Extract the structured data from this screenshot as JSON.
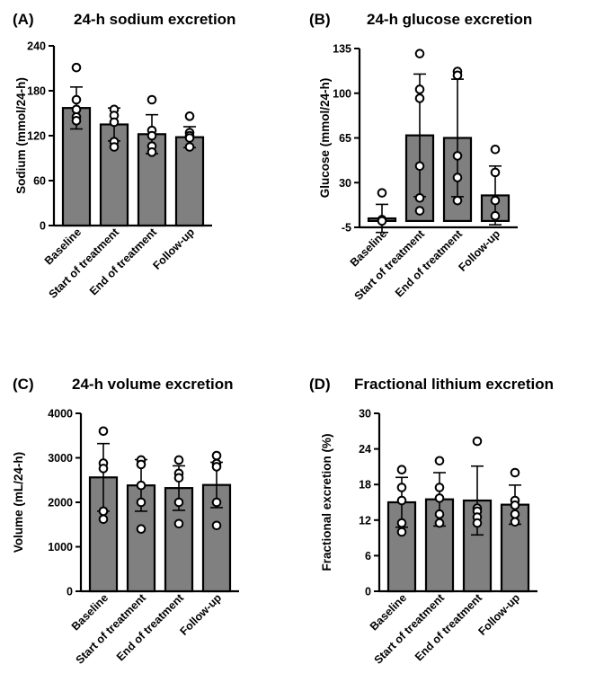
{
  "chart_data": [
    {
      "panel": "(A)",
      "type": "bar",
      "title": "24-h  sodium excretion",
      "ylabel": "Sodium (mmol/24-h)",
      "ylim": [
        0,
        240
      ],
      "yticks": [
        0,
        60,
        120,
        180,
        240
      ],
      "categories": [
        "Baseline",
        "Start of treatment",
        "End of treatment",
        "Follow-up"
      ],
      "values": [
        157,
        135,
        122,
        118
      ],
      "error": [
        28,
        22,
        26,
        14
      ],
      "points": [
        [
          211,
          168,
          155,
          145,
          140
        ],
        [
          155,
          147,
          138,
          112,
          105
        ],
        [
          168,
          127,
          120,
          106,
          98
        ],
        [
          146,
          124,
          120,
          117,
          105
        ]
      ],
      "bar_color": "#808080"
    },
    {
      "panel": "(B)",
      "type": "bar",
      "title": "24-h glucose excretion",
      "ylabel": "Glucose (mmol/24-h)",
      "ylim": [
        -5,
        135
      ],
      "yticks": [
        -5,
        30,
        65,
        100,
        135
      ],
      "categories": [
        "Baseline",
        "Start of treatment",
        "End of treatment",
        "Follow-up"
      ],
      "values": [
        2,
        67,
        65,
        20
      ],
      "error": [
        11,
        48,
        46,
        23
      ],
      "points": [
        [
          22,
          1,
          0
        ],
        [
          131,
          103,
          96,
          43,
          18,
          8
        ],
        [
          117,
          114,
          51,
          34,
          16
        ],
        [
          56,
          38,
          16,
          4
        ]
      ],
      "bar_color": "#808080"
    },
    {
      "panel": "(C)",
      "type": "bar",
      "title": "24-h  volume excretion",
      "ylabel": "Volume (mL/24-h)",
      "ylim": [
        0,
        4000
      ],
      "yticks": [
        0,
        1000,
        2000,
        3000,
        4000
      ],
      "categories": [
        "Baseline",
        "Start of treatment",
        "End of treatment",
        "Follow-up"
      ],
      "values": [
        2560,
        2380,
        2320,
        2390
      ],
      "error": [
        760,
        580,
        500,
        510
      ],
      "points": [
        [
          3600,
          2880,
          2760,
          1800,
          1620
        ],
        [
          2950,
          2850,
          2380,
          2000,
          1400
        ],
        [
          2950,
          2650,
          2550,
          2000,
          1520
        ],
        [
          3050,
          2870,
          2800,
          2000,
          1480
        ]
      ],
      "bar_color": "#808080"
    },
    {
      "panel": "(D)",
      "type": "bar",
      "title": "Fractional lithium excretion",
      "ylabel": "Fractional excretion (%)",
      "ylim": [
        0,
        30
      ],
      "yticks": [
        0,
        6,
        12,
        18,
        24,
        30
      ],
      "categories": [
        "Baseline",
        "Start of treatment",
        "End of treatment",
        "Follow-up"
      ],
      "values": [
        15,
        15.5,
        15.3,
        14.6
      ],
      "error": [
        4.2,
        4.5,
        5.8,
        3.3
      ],
      "points": [
        [
          20.5,
          17.5,
          15.3,
          11.5,
          10
        ],
        [
          22,
          17.5,
          15.7,
          13,
          11.5
        ],
        [
          25.3,
          14,
          13.5,
          12.5,
          11.5
        ],
        [
          20,
          15.3,
          14.5,
          13,
          11.7
        ]
      ],
      "bar_color": "#808080"
    }
  ]
}
